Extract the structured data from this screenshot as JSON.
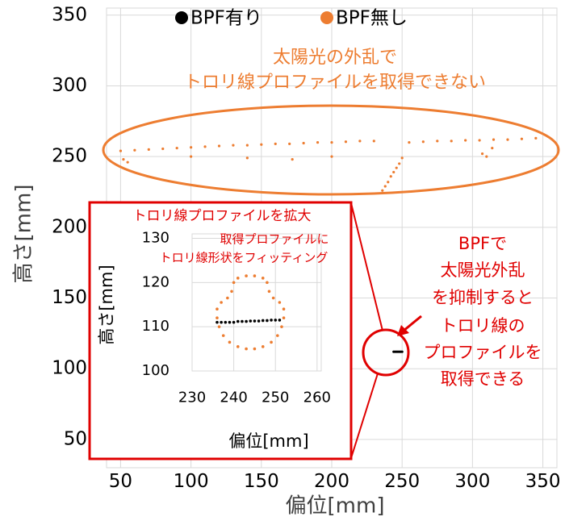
{
  "chart_data": [
    {
      "type": "scatter",
      "xlabel": "偏位[mm]",
      "ylabel": "高さ[mm]",
      "xlim": [
        40,
        360
      ],
      "ylim": [
        30,
        355
      ],
      "xticks": [
        50,
        100,
        150,
        200,
        250,
        300,
        350
      ],
      "yticks": [
        50,
        100,
        150,
        200,
        250,
        300,
        350
      ],
      "grid": true,
      "series": [
        {
          "name": "BPF有り",
          "color": "#000000",
          "x": [
            244,
            245,
            246,
            247,
            248,
            249,
            250
          ],
          "y": [
            112,
            112,
            112,
            112,
            112,
            112,
            112
          ]
        },
        {
          "name": "BPF無し",
          "color": "#ed7d31",
          "x": [
            50,
            60,
            70,
            80,
            90,
            100,
            110,
            120,
            130,
            140,
            150,
            160,
            170,
            180,
            190,
            200,
            210,
            220,
            230,
            255,
            265,
            275,
            285,
            295,
            305,
            315,
            325,
            335,
            345,
            52,
            55,
            100,
            140,
            172,
            200,
            236,
            238,
            240,
            242,
            244,
            246,
            248,
            250,
            307,
            310,
            314
          ],
          "y": [
            254,
            254.5,
            255,
            255.5,
            256,
            256.5,
            257,
            257.5,
            258,
            258,
            258.5,
            259,
            259,
            259.5,
            260,
            260,
            260.5,
            261,
            261,
            260,
            260.5,
            261,
            261,
            261.5,
            261.5,
            262,
            262,
            262.5,
            263,
            248,
            246,
            250,
            249,
            248,
            250,
            226,
            229,
            232,
            236,
            239,
            242,
            245,
            249,
            252,
            250,
            256
          ]
        }
      ],
      "annotations": [
        "太陽光の外乱で",
        "トロリ線プロファイルを取得できない",
        "BPFで",
        "太陽光外乱",
        "を抑制すると",
        "トロリ線の",
        "プロファイルを",
        "取得できる"
      ]
    },
    {
      "type": "scatter",
      "xlabel": "偏位[mm]",
      "ylabel": "高さ[mm]",
      "xlim": [
        230,
        261
      ],
      "ylim": [
        100,
        131
      ],
      "xticks": [
        230,
        240,
        250,
        260
      ],
      "yticks": [
        100,
        110,
        120,
        130
      ],
      "grid": true,
      "series": [
        {
          "color": "#000000",
          "x": [
            236,
            237,
            238,
            239,
            240,
            241,
            242,
            243,
            244,
            245,
            246,
            247,
            248,
            249,
            250,
            251
          ],
          "y": [
            111,
            111,
            111,
            111,
            111,
            111.2,
            111.2,
            111.2,
            111.3,
            111.3,
            111.3,
            111.4,
            111.4,
            111.5,
            111.5,
            111.5
          ]
        },
        {
          "color": "#ed7d31",
          "x": [
            236,
            236,
            237,
            238.5,
            239.5,
            240,
            241,
            243,
            245,
            247,
            248,
            248.5,
            249.5,
            251,
            252,
            252,
            251.5,
            250.5,
            249,
            247,
            245,
            243,
            241,
            239,
            237.5,
            236.5
          ],
          "y": [
            112,
            114,
            115.5,
            116.5,
            118,
            120,
            121,
            121.5,
            121.5,
            121,
            120,
            118,
            116.5,
            115.5,
            114,
            112,
            110,
            108,
            106.5,
            105.5,
            105,
            105,
            105.5,
            106.5,
            108,
            110
          ]
        }
      ],
      "annotations": [
        "トロリ線プロファイルを拡大",
        "取得プロファイルに",
        "トロリ線形状をフィッティング"
      ]
    }
  ]
}
